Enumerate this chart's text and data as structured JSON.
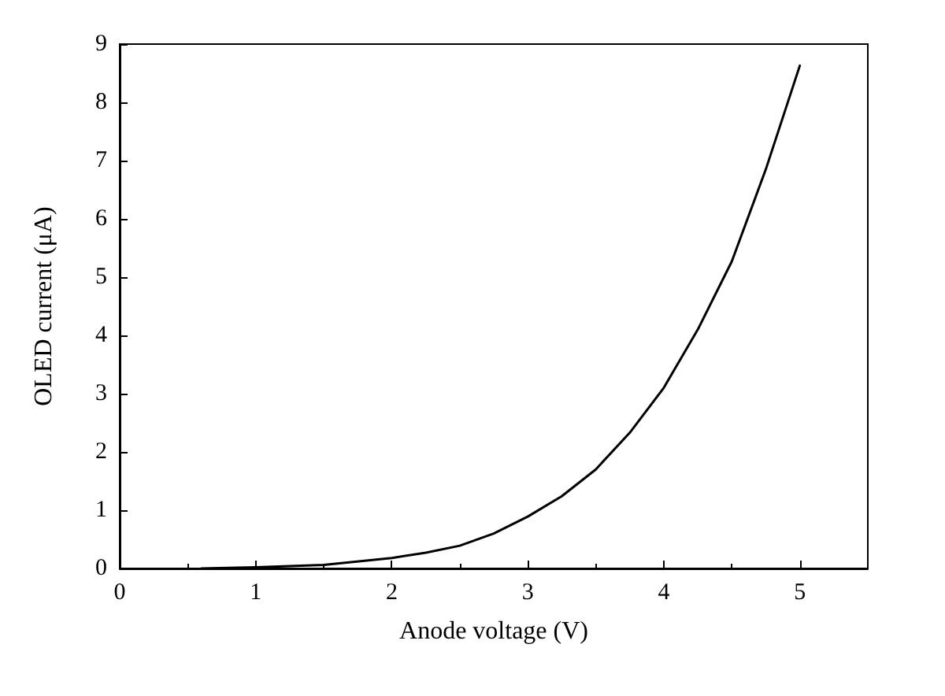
{
  "chart_data": {
    "type": "line",
    "xlabel": "Anode voltage (V)",
    "ylabel": "OLED current (μA)",
    "xlim": [
      0,
      5.5
    ],
    "xticks": [
      0,
      1,
      2,
      3,
      4,
      5
    ],
    "ylim": [
      0,
      9
    ],
    "yticks": [
      0,
      1,
      2,
      3,
      4,
      5,
      6,
      7,
      8,
      9
    ],
    "grid": false,
    "marker": "none",
    "line_style": "solid",
    "series": [
      {
        "color": "#000000",
        "x": [
          0.6,
          1,
          1.5,
          2,
          2.25,
          2.5,
          2.75,
          3,
          3.25,
          3.5,
          3.75,
          4,
          4.25,
          4.5,
          4.75,
          5
        ],
        "values": [
          0,
          0.02,
          0.06,
          0.18,
          0.27,
          0.39,
          0.6,
          0.89,
          1.24,
          1.7,
          2.33,
          3.1,
          4.1,
          5.27,
          6.85,
          8.63
        ]
      }
    ]
  }
}
